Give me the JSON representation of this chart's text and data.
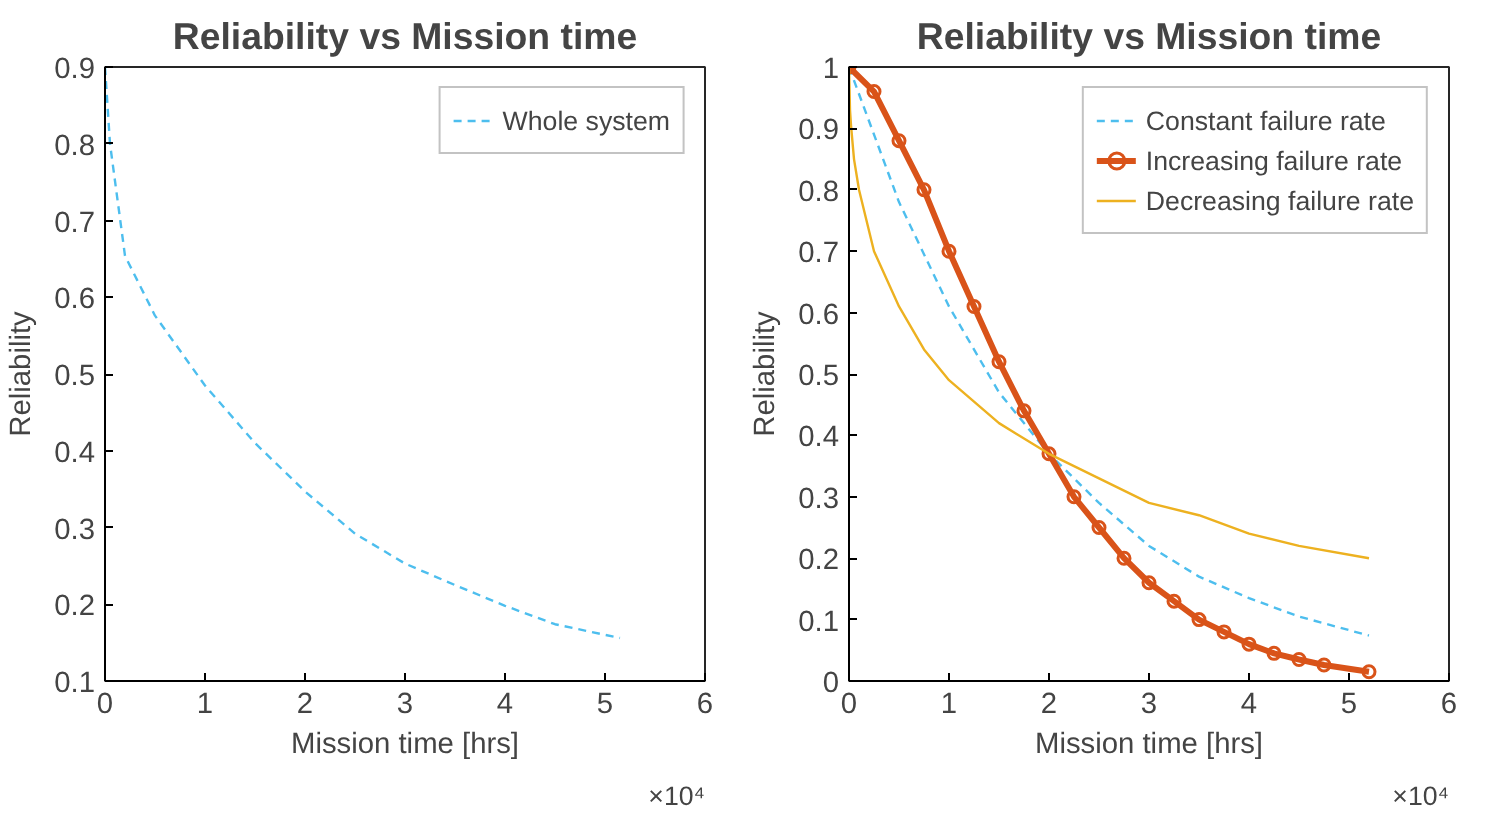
{
  "chart_data": [
    {
      "type": "line",
      "title": "Reliability vs Mission time",
      "xlabel": "Mission time [hrs]",
      "ylabel": "Reliability",
      "xlim": [
        0,
        6
      ],
      "xticks": [
        0,
        1,
        2,
        3,
        4,
        5,
        6
      ],
      "ylim": [
        0.1,
        0.9
      ],
      "yticks": [
        0.1,
        0.2,
        0.3,
        0.4,
        0.5,
        0.6,
        0.7,
        0.8,
        0.9
      ],
      "grid": false,
      "legend": "top right",
      "annotations": [
        "×10⁴"
      ],
      "series": [
        {
          "name": "Whole system",
          "color": "#4dbeee",
          "line_style": "dashed",
          "marker": "none",
          "x": [
            0,
            0.05,
            0.2,
            0.5,
            1,
            1.5,
            2,
            2.5,
            3,
            3.5,
            4,
            4.5,
            5.15
          ],
          "values": [
            0.9,
            0.8,
            0.654,
            0.576,
            0.485,
            0.41,
            0.347,
            0.292,
            0.253,
            0.225,
            0.198,
            0.174,
            0.156
          ]
        }
      ]
    },
    {
      "type": "line",
      "title": "Reliability vs Mission time",
      "xlabel": "Mission time [hrs]",
      "ylabel": "Reliability",
      "xlim": [
        0,
        6
      ],
      "xticks": [
        0,
        1,
        2,
        3,
        4,
        5,
        6
      ],
      "ylim": [
        0,
        1
      ],
      "yticks": [
        0,
        0.1,
        0.2,
        0.3,
        0.4,
        0.5,
        0.6,
        0.7,
        0.8,
        0.9,
        1
      ],
      "grid": false,
      "legend": "top right",
      "annotations": [
        "×10⁴"
      ],
      "series": [
        {
          "name": "Constant failure rate",
          "color": "#4dbeee",
          "line_style": "dashed",
          "marker": "none",
          "x": [
            0,
            0.5,
            1,
            1.5,
            2,
            2.5,
            3,
            3.5,
            4,
            4.5,
            5.2
          ],
          "values": [
            1,
            0.78,
            0.61,
            0.47,
            0.37,
            0.29,
            0.22,
            0.17,
            0.135,
            0.105,
            0.074
          ]
        },
        {
          "name": "Increasing failure rate",
          "color": "#d95319",
          "line_style": "solid",
          "marker": "circle",
          "x": [
            0,
            0.25,
            0.5,
            0.75,
            1,
            1.25,
            1.5,
            1.75,
            2,
            2.25,
            2.5,
            2.75,
            3,
            3.25,
            3.5,
            3.75,
            4,
            4.25,
            4.5,
            4.75,
            5.2
          ],
          "values": [
            1,
            0.96,
            0.88,
            0.8,
            0.7,
            0.61,
            0.52,
            0.44,
            0.37,
            0.3,
            0.25,
            0.2,
            0.16,
            0.13,
            0.1,
            0.08,
            0.06,
            0.045,
            0.035,
            0.026,
            0.015
          ]
        },
        {
          "name": "Decreasing failure rate",
          "color": "#edb120",
          "line_style": "solid",
          "marker": "none",
          "x": [
            0,
            0.01,
            0.02,
            0.05,
            0.1,
            0.25,
            0.5,
            0.75,
            1,
            1.5,
            2,
            2.5,
            3,
            3.5,
            4,
            4.5,
            5.2
          ],
          "values": [
            1,
            0.93,
            0.905,
            0.85,
            0.8,
            0.7,
            0.61,
            0.54,
            0.49,
            0.42,
            0.37,
            0.33,
            0.29,
            0.27,
            0.24,
            0.22,
            0.2
          ]
        }
      ]
    }
  ]
}
